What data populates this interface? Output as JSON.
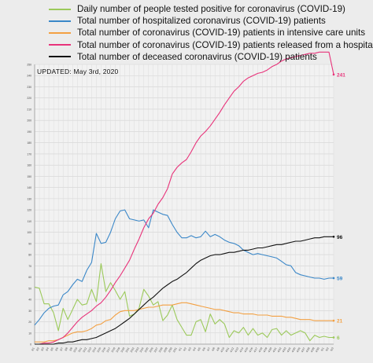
{
  "chart_data": {
    "type": "line",
    "title": "",
    "xlabel": "",
    "ylabel": "",
    "updated_note": "UPDATED: May 3rd, 2020",
    "ylim": [
      0,
      250
    ],
    "y_ticks": [
      0,
      10,
      20,
      30,
      40,
      50,
      60,
      70,
      80,
      90,
      100,
      110,
      120,
      130,
      140,
      150,
      160,
      170,
      180,
      190,
      200,
      210,
      220,
      230,
      240,
      250
    ],
    "x_tick_labels": [
      "3/1",
      "3/2",
      "3/3",
      "3/4",
      "3/5",
      "3/6",
      "3/7",
      "3/8",
      "3/9",
      "3/10",
      "3/11",
      "3/12",
      "3/13",
      "3/14",
      "3/15",
      "3/16",
      "3/17",
      "3/18",
      "3/19",
      "3/20",
      "3/21",
      "3/22",
      "3/23",
      "3/24",
      "3/25",
      "3/26",
      "3/27",
      "3/28",
      "3/29",
      "3/30",
      "3/31",
      "4/1",
      "4/2",
      "4/3",
      "4/4",
      "4/5",
      "4/6",
      "4/7",
      "4/8",
      "4/9",
      "4/10",
      "4/11",
      "4/12",
      "4/13",
      "4/14",
      "4/15",
      "4/16",
      "4/17",
      "4/18",
      "4/19",
      "4/20",
      "4/21",
      "4/22",
      "4/23",
      "4/24",
      "4/25",
      "4/26",
      "4/27",
      "4/28",
      "4/29",
      "4/30",
      "5/1",
      "5/2",
      "5/3"
    ],
    "grid": true,
    "legend_position": "top",
    "series": [
      {
        "name": "Daily number of people tested positive for coronavirus (COVID-19)",
        "color": "#9bc95a",
        "values": [
          51,
          50,
          36,
          36,
          28,
          12,
          32,
          22,
          31,
          40,
          35,
          36,
          49,
          38,
          72,
          47,
          55,
          48,
          40,
          47,
          25,
          27,
          32,
          49,
          43,
          35,
          38,
          21,
          26,
          35,
          22,
          15,
          8,
          8,
          20,
          22,
          11,
          27,
          18,
          22,
          18,
          6,
          12,
          10,
          15,
          8,
          14,
          8,
          10,
          6,
          13,
          14,
          8,
          12,
          8,
          10,
          12,
          10,
          3,
          8,
          6,
          7,
          6,
          6
        ],
        "end_label": "6",
        "end_label_color": "#9bc95a"
      },
      {
        "name": "Total number of hospitalized coronavirus (COVID-19) patients",
        "color": "#3a87c8",
        "values": [
          17,
          22,
          28,
          32,
          34,
          35,
          44,
          47,
          53,
          58,
          56,
          66,
          73,
          99,
          90,
          91,
          100,
          112,
          119,
          120,
          112,
          111,
          110,
          111,
          104,
          120,
          118,
          116,
          115,
          107,
          100,
          95,
          95,
          97,
          95,
          96,
          101,
          96,
          98,
          96,
          93,
          91,
          90,
          88,
          84,
          82,
          80,
          81,
          80,
          79,
          78,
          77,
          74,
          71,
          70,
          64,
          62,
          61,
          60,
          59,
          59,
          58,
          59,
          59
        ],
        "end_label": "59",
        "end_label_color": "#3a87c8"
      },
      {
        "name": "Total number of coronavirus (COVID-19) patients in intensive care units",
        "color": "#f3a042",
        "values": [
          2,
          2,
          2,
          3,
          3,
          4,
          6,
          8,
          10,
          11,
          11,
          12,
          14,
          17,
          18,
          21,
          22,
          26,
          29,
          30,
          30,
          30,
          31,
          32,
          33,
          33,
          34,
          35,
          35,
          35,
          36,
          37,
          37,
          36,
          35,
          34,
          33,
          32,
          31,
          31,
          30,
          29,
          28,
          28,
          27,
          27,
          27,
          26,
          26,
          26,
          25,
          25,
          25,
          24,
          24,
          23,
          22,
          22,
          22,
          21,
          21,
          21,
          21,
          21
        ],
        "end_label": "21",
        "end_label_color": "#f3a042"
      },
      {
        "name": "Total number of coronavirus (COVID-19) patients released from a hospital",
        "color": "#e8337a",
        "values": [
          0,
          0,
          1,
          1,
          2,
          4,
          6,
          10,
          15,
          20,
          24,
          27,
          30,
          34,
          37,
          42,
          48,
          55,
          61,
          68,
          75,
          85,
          94,
          104,
          112,
          117,
          125,
          131,
          139,
          152,
          158,
          162,
          165,
          172,
          180,
          186,
          190,
          195,
          201,
          207,
          214,
          220,
          226,
          230,
          235,
          238,
          240,
          242,
          243,
          245,
          248,
          250,
          253,
          255,
          256,
          257,
          258,
          259,
          260,
          260,
          261,
          261,
          261,
          241
        ],
        "end_label": "241",
        "end_label_color": "#e8337a"
      },
      {
        "name": "Total number of deceased coronavirus (COVID-19) patients",
        "color": "#111111",
        "values": [
          0,
          0,
          0,
          0,
          0,
          1,
          1,
          2,
          2,
          3,
          4,
          4,
          5,
          6,
          8,
          10,
          12,
          14,
          17,
          20,
          23,
          27,
          31,
          35,
          39,
          42,
          46,
          50,
          53,
          56,
          58,
          61,
          64,
          68,
          72,
          75,
          77,
          79,
          80,
          80,
          81,
          82,
          82,
          83,
          84,
          84,
          85,
          86,
          86,
          87,
          88,
          89,
          89,
          90,
          91,
          92,
          92,
          93,
          94,
          95,
          95,
          96,
          96,
          96
        ],
        "end_label": "96",
        "end_label_color": "#111111"
      }
    ]
  }
}
